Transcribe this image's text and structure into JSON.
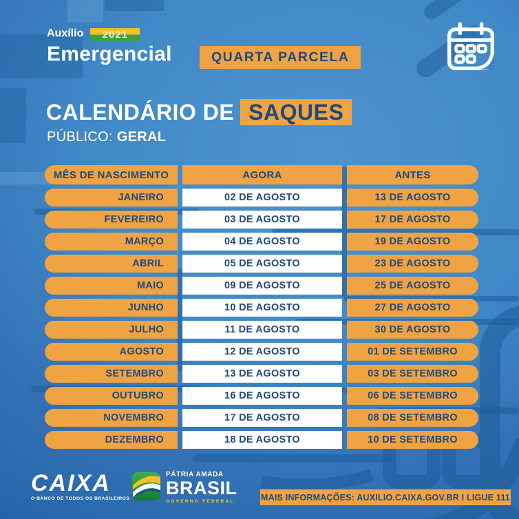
{
  "header": {
    "logo_line1": "Auxílio",
    "logo_line2": "Emergencial",
    "logo_year": "2021",
    "parcel_badge": "QUARTA PARCELA"
  },
  "title": {
    "main": "CALENDÁRIO DE",
    "highlight": "SAQUES",
    "audience_label": "PÚBLICO:",
    "audience_value": "GERAL"
  },
  "table": {
    "columns": [
      "MÊS DE NASCIMENTO",
      "AGORA",
      "ANTES"
    ],
    "rows": [
      {
        "month": "JANEIRO",
        "agora": "02 DE AGOSTO",
        "antes": "13 DE AGOSTO"
      },
      {
        "month": "FEVEREIRO",
        "agora": "03 DE AGOSTO",
        "antes": "17 DE AGOSTO"
      },
      {
        "month": "MARÇO",
        "agora": "04 DE AGOSTO",
        "antes": "19 DE AGOSTO"
      },
      {
        "month": "ABRIL",
        "agora": "05 DE AGOSTO",
        "antes": "23 DE AGOSTO"
      },
      {
        "month": "MAIO",
        "agora": "09 DE AGOSTO",
        "antes": "25 DE AGOSTO"
      },
      {
        "month": "JUNHO",
        "agora": "10 DE AGOSTO",
        "antes": "27 DE AGOSTO"
      },
      {
        "month": "JULHO",
        "agora": "11 DE AGOSTO",
        "antes": "30 DE AGOSTO"
      },
      {
        "month": "AGOSTO",
        "agora": "12 DE AGOSTO",
        "antes": "01 DE SETEMBRO"
      },
      {
        "month": "SETEMBRO",
        "agora": "13 DE AGOSTO",
        "antes": "03 DE SETEMBRO"
      },
      {
        "month": "OUTUBRO",
        "agora": "16 DE AGOSTO",
        "antes": "06 DE SETEMBRO"
      },
      {
        "month": "NOVEMBRO",
        "agora": "17 DE AGOSTO",
        "antes": "08 DE SETEMBRO"
      },
      {
        "month": "DEZEMBRO",
        "agora": "18 DE AGOSTO",
        "antes": "10 DE SETEMBRO"
      }
    ]
  },
  "footer": {
    "caixa_logo": "CAIXA",
    "caixa_tagline": "O BANCO DE TODOS OS BRASILEIROS",
    "brasil_line1": "PÁTRIA AMADA",
    "brasil_line2": "BRASIL",
    "brasil_line3": "GOVERNO FEDERAL",
    "info_bar": "MAIS INFORMAÇÕES: AUXILIO.CAIXA.GOV.BR I LIGUE 111"
  },
  "colors": {
    "orange": "#F0A342",
    "navy": "#21497B",
    "background_light": "#4A90CC",
    "background_dark": "#1D5C9C",
    "badge_yellow": "#F2C125",
    "badge_green": "#3BA047",
    "governo_yellow": "#F8D21C"
  }
}
